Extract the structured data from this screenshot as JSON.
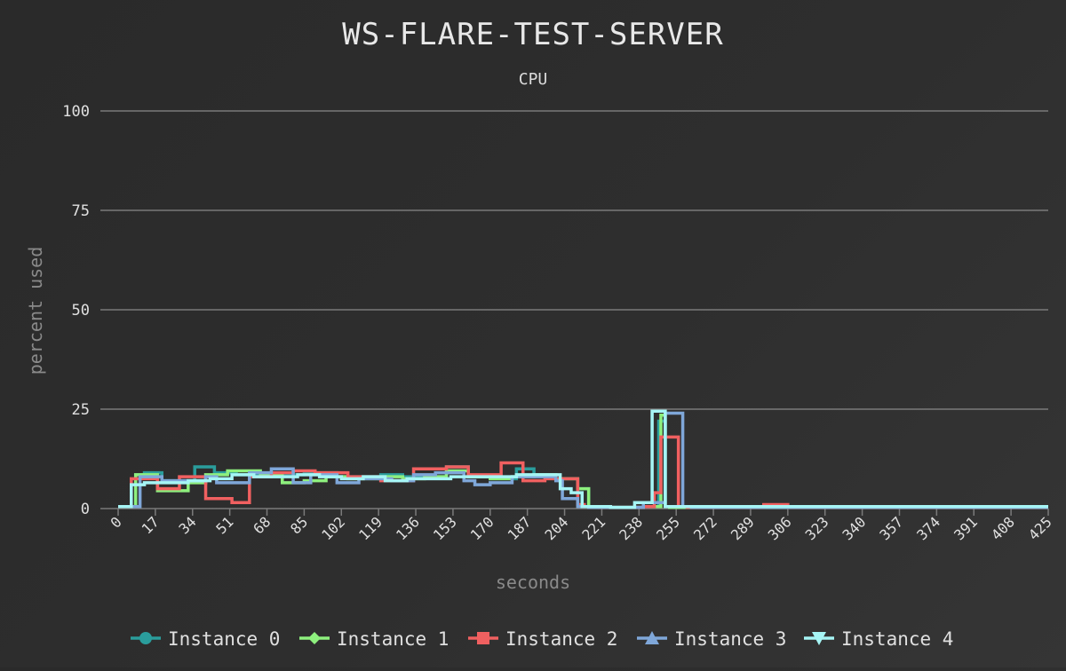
{
  "chart_data": {
    "type": "line",
    "title": "WS-FLARE-TEST-SERVER",
    "subtitle": "CPU",
    "xlabel": "seconds",
    "ylabel": "percent used",
    "xlim": [
      0,
      425
    ],
    "ylim": [
      0,
      100
    ],
    "y_ticks": [
      0,
      25,
      50,
      75,
      100
    ],
    "x_ticks": [
      0,
      17,
      34,
      51,
      68,
      85,
      102,
      119,
      136,
      153,
      170,
      187,
      204,
      221,
      238,
      255,
      272,
      289,
      306,
      323,
      340,
      357,
      374,
      391,
      408,
      425
    ],
    "grid": "horizontal",
    "legend_position": "bottom",
    "interpolation": "step",
    "series": [
      {
        "name": "Instance 0",
        "color": "#2a9d9c",
        "marker": "circle",
        "x": [
          0,
          5,
          7,
          8,
          12,
          20,
          23,
          35,
          44,
          54,
          65,
          75,
          85,
          100,
          120,
          130,
          150,
          160,
          170,
          182,
          190,
          200,
          210,
          215,
          220,
          225,
          230,
          235,
          240,
          245,
          247,
          250,
          252,
          256,
          260,
          300,
          350,
          400,
          425
        ],
        "y": [
          0.5,
          0.5,
          0.5,
          8.5,
          9.0,
          7.0,
          7.0,
          10.5,
          9.0,
          8.5,
          8.0,
          8.5,
          9.0,
          8.0,
          8.5,
          8.0,
          10.5,
          8.0,
          7.5,
          10.0,
          8.0,
          7.5,
          5.0,
          0.5,
          0.3,
          0.3,
          0.3,
          0.3,
          0.5,
          0.5,
          22.0,
          0.5,
          0.3,
          0.3,
          0.3,
          0.3,
          0.3,
          0.3,
          0.3
        ]
      },
      {
        "name": "Instance 1",
        "color": "#8ef07e",
        "marker": "diamond",
        "x": [
          0,
          4,
          8,
          18,
          28,
          32,
          40,
          50,
          65,
          75,
          85,
          95,
          105,
          120,
          130,
          140,
          150,
          160,
          170,
          180,
          190,
          200,
          210,
          215,
          220,
          225,
          230,
          235,
          240,
          245,
          248,
          250,
          252,
          256,
          260,
          300,
          350,
          400,
          425
        ],
        "y": [
          0.5,
          0.5,
          8.5,
          4.5,
          4.5,
          6.5,
          8.5,
          9.5,
          8.5,
          6.5,
          7.0,
          8.0,
          7.5,
          8.0,
          7.5,
          8.0,
          9.5,
          8.0,
          7.5,
          8.0,
          8.5,
          7.5,
          5.0,
          0.5,
          0.3,
          0.3,
          0.3,
          0.3,
          0.5,
          0.5,
          23.5,
          0.5,
          0.3,
          0.3,
          0.3,
          0.3,
          0.3,
          0.3,
          0.3
        ]
      },
      {
        "name": "Instance 2",
        "color": "#f06060",
        "marker": "square",
        "x": [
          0,
          4,
          6,
          18,
          28,
          40,
          52,
          60,
          70,
          80,
          90,
          105,
          120,
          135,
          150,
          160,
          170,
          175,
          185,
          195,
          205,
          210,
          213,
          220,
          225,
          230,
          235,
          240,
          245,
          248,
          250,
          252,
          256,
          260,
          270,
          295,
          306,
          310,
          350,
          425
        ],
        "y": [
          0.5,
          0.5,
          7.5,
          5.0,
          8.0,
          2.5,
          1.5,
          8.0,
          9.0,
          9.5,
          9.0,
          8.0,
          7.0,
          10.0,
          10.5,
          8.5,
          8.5,
          11.5,
          7.0,
          7.5,
          7.5,
          1.0,
          0.5,
          0.3,
          0.3,
          0.3,
          0.3,
          0.5,
          4.0,
          18.0,
          18.0,
          18.0,
          0.5,
          0.3,
          0.3,
          1.0,
          0.3,
          0.3,
          0.3,
          0.3
        ]
      },
      {
        "name": "Instance 3",
        "color": "#7fa7d9",
        "marker": "triangle-up",
        "x": [
          0,
          8,
          10,
          20,
          30,
          40,
          45,
          60,
          70,
          80,
          88,
          100,
          110,
          125,
          135,
          145,
          158,
          163,
          170,
          180,
          195,
          200,
          203,
          210,
          215,
          220,
          225,
          230,
          235,
          240,
          245,
          250,
          253,
          258,
          262,
          300,
          350,
          425
        ],
        "y": [
          0.5,
          0.5,
          8.0,
          7.0,
          7.0,
          8.0,
          6.5,
          9.0,
          10.0,
          6.5,
          8.5,
          6.5,
          7.5,
          7.0,
          8.5,
          9.0,
          7.0,
          6.0,
          6.5,
          8.0,
          8.0,
          7.0,
          2.5,
          0.5,
          0.3,
          0.3,
          0.3,
          0.3,
          0.3,
          1.5,
          1.5,
          24.0,
          24.0,
          0.5,
          0.3,
          0.3,
          0.3,
          0.3
        ]
      },
      {
        "name": "Instance 4",
        "color": "#a6f5f5",
        "marker": "triangle-down",
        "x": [
          0,
          6,
          12,
          22,
          32,
          42,
          52,
          62,
          72,
          82,
          92,
          102,
          112,
          122,
          132,
          142,
          152,
          162,
          172,
          182,
          192,
          202,
          207,
          212,
          218,
          225,
          232,
          236,
          242,
          244,
          248,
          250,
          252,
          256,
          300,
          350,
          425
        ],
        "y": [
          0.5,
          6.0,
          6.5,
          6.5,
          7.0,
          7.5,
          8.5,
          8.0,
          8.0,
          8.5,
          8.0,
          7.5,
          8.0,
          7.0,
          7.5,
          7.5,
          8.0,
          8.0,
          8.0,
          8.5,
          8.5,
          5.0,
          4.0,
          0.5,
          0.5,
          0.3,
          0.3,
          1.5,
          1.5,
          24.5,
          24.5,
          0.5,
          0.5,
          0.5,
          0.5,
          0.5,
          0.5
        ]
      }
    ]
  }
}
